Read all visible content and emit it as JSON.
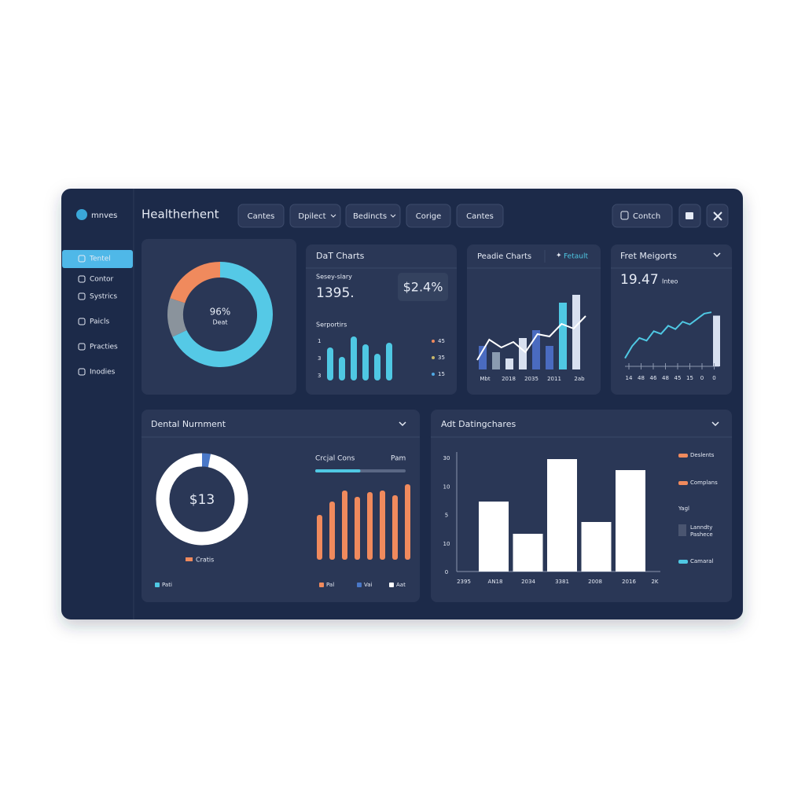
{
  "sidebar": {
    "logo": "mnves",
    "items": [
      "Tentel",
      "Contor",
      "Systrics",
      "Paicls",
      "Practies",
      "Inodies"
    ]
  },
  "header": {
    "title": "Healtherhent",
    "tabs": [
      "Cantes",
      "Dpilect",
      "Bedincts",
      "Corige",
      "Cantes"
    ],
    "button": "Contch"
  },
  "donut_card": {
    "center_value": "96%",
    "center_label": "Deat",
    "segments": [
      {
        "value": 68,
        "color": "#55c9e6"
      },
      {
        "value": 12,
        "color": "#8a939c"
      },
      {
        "value": 20,
        "color": "#f08a5d"
      }
    ]
  },
  "dat_card": {
    "title": "DaT Charts",
    "kpi_label": "Sesey-slary",
    "kpi_value": "1395.",
    "badge": "$2.4%",
    "chart_label": "Serportirs",
    "ylabels": [
      "1",
      "3",
      "3"
    ],
    "values": [
      42,
      30,
      56,
      46,
      34,
      48
    ],
    "ylim": [
      0,
      60
    ],
    "color": "#4fc8e3",
    "legend": [
      {
        "label": "45",
        "color": "#f08a5d"
      },
      {
        "label": "35",
        "color": "#c9b86a"
      },
      {
        "label": "15",
        "color": "#4fa8e3"
      }
    ]
  },
  "peadie_card": {
    "title": "Peadie Charts",
    "link": "Fetault",
    "xlabels": [
      "Mbt",
      "2018",
      "2035",
      "2011",
      "2ab"
    ],
    "bars": [
      30,
      22,
      14,
      40,
      50,
      30,
      85,
      95
    ],
    "bar_colors": [
      "#4a6bc0",
      "#8a9bb0",
      "#d8e0f0",
      "#d8e0f0",
      "#4a6bc0",
      "#4a6bc0",
      "#4fc8e3",
      "#d8e0f0"
    ],
    "line": [
      12,
      38,
      28,
      35,
      22,
      45,
      42,
      58,
      52,
      68
    ],
    "line_color": "#ffffff",
    "ylim": [
      0,
      100
    ]
  },
  "fret_card": {
    "title": "Fret Meigorts",
    "value": "19.47",
    "unit": "Inteo",
    "line": [
      12,
      30,
      42,
      38,
      52,
      48,
      60,
      55,
      66,
      62,
      70,
      78,
      80
    ],
    "line_color": "#4fc8e3",
    "bar": 75,
    "bar_color": "#d8e0f0",
    "ylim": [
      0,
      100
    ],
    "xlabels": [
      "14",
      "48",
      "46",
      "48",
      "45",
      "15",
      "0",
      "0"
    ]
  },
  "dental_card": {
    "title": "Dental Nurnment",
    "ring_value": "$13",
    "ring_segments": [
      {
        "value": 3,
        "color": "#4a78c8"
      },
      {
        "value": 97,
        "color": "#ffffff"
      }
    ],
    "ring_legend": "Cratis",
    "bars_title": "Crcjal Cons",
    "bars_note": "Pam",
    "progress": 50,
    "progress_max": 100,
    "bars": [
      57,
      74,
      88,
      80,
      86,
      88,
      82,
      96
    ],
    "ylim": [
      0,
      100
    ],
    "bar_color": "#f08a5d",
    "legend": [
      {
        "label": "Pati",
        "color": "#4fc8e3"
      },
      {
        "label": "Pal",
        "color": "#f08a5d"
      },
      {
        "label": "Vai",
        "color": "#4a78c8"
      },
      {
        "label": "Aat",
        "color": "#ffffff"
      }
    ]
  },
  "adt_card": {
    "title": "Adt Datingchares",
    "ylabels": [
      "30",
      "10",
      "5",
      "10",
      "0"
    ],
    "xlabels": [
      "2395",
      "AN18",
      "2034",
      "3381",
      "2008",
      "2016",
      "2K"
    ],
    "values": [
      89,
      48,
      143,
      63,
      129
    ],
    "ylim": [
      0,
      150
    ],
    "color": "#ffffff",
    "legend": [
      {
        "label": "Deslents",
        "color": "#f08a5d"
      },
      {
        "label": "Complans",
        "color": "#f08a5d"
      },
      {
        "label": "Yagl"
      },
      {
        "lines": [
          "Lanndty",
          "Pashece"
        ],
        "color": "#4a5570"
      },
      {
        "label": "Camaral",
        "color": "#4fc8e3"
      }
    ]
  }
}
